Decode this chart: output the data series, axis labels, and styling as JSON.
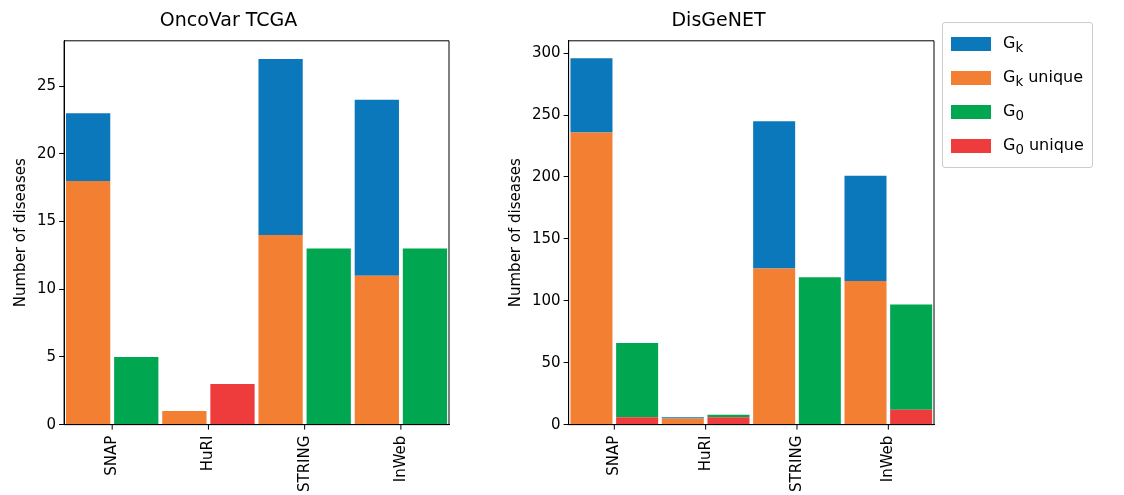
{
  "chart_data": [
    {
      "type": "bar",
      "title": "OncoVar TCGA",
      "ylabel": "Number of diseases",
      "stacked": true,
      "categories": [
        "SNAP",
        null,
        "HuRI",
        null,
        "STRING",
        null,
        "InWeb",
        null
      ],
      "series": [
        {
          "color": "#f37f33",
          "values": [
            18,
            null,
            1,
            null,
            14,
            null,
            11,
            null
          ]
        },
        {
          "color": "#0b78bc",
          "values": [
            5,
            null,
            0,
            null,
            13,
            null,
            13,
            null
          ]
        },
        {
          "color": "#ee3b3b",
          "values": [
            null,
            0,
            null,
            3,
            null,
            0,
            null,
            0
          ]
        },
        {
          "color": "#00a650",
          "values": [
            null,
            5,
            null,
            0,
            null,
            13,
            null,
            13
          ]
        }
      ],
      "ylim": [
        0,
        28.35
      ],
      "yticks": [
        0,
        5,
        10,
        15,
        20,
        25
      ],
      "grid": false,
      "legend": false
    },
    {
      "type": "bar",
      "title": "DisGeNET",
      "ylabel": "Number of diseases",
      "stacked": true,
      "categories": [
        "SNAP",
        null,
        "HuRI",
        null,
        "STRING",
        null,
        "InWeb",
        null
      ],
      "series": [
        {
          "name": "G$_{k}$ unique",
          "color": "#f37f33",
          "values": [
            236,
            null,
            5,
            null,
            126,
            null,
            116,
            null
          ]
        },
        {
          "name": "G$_{k}$",
          "color": "#0b78bc",
          "values": [
            60,
            null,
            1,
            null,
            119,
            null,
            85,
            null
          ]
        },
        {
          "name": "G$_{0}$ unique",
          "color": "#ee3b3b",
          "values": [
            null,
            6,
            null,
            6,
            null,
            0,
            null,
            12
          ]
        },
        {
          "name": "G$_{0}$",
          "color": "#00a650",
          "values": [
            null,
            60,
            null,
            2,
            null,
            119,
            null,
            85
          ]
        }
      ],
      "ylim": [
        0,
        310
      ],
      "yticks": [
        0,
        50,
        100,
        150,
        200,
        250,
        300
      ],
      "grid": false,
      "legend": "right"
    }
  ]
}
